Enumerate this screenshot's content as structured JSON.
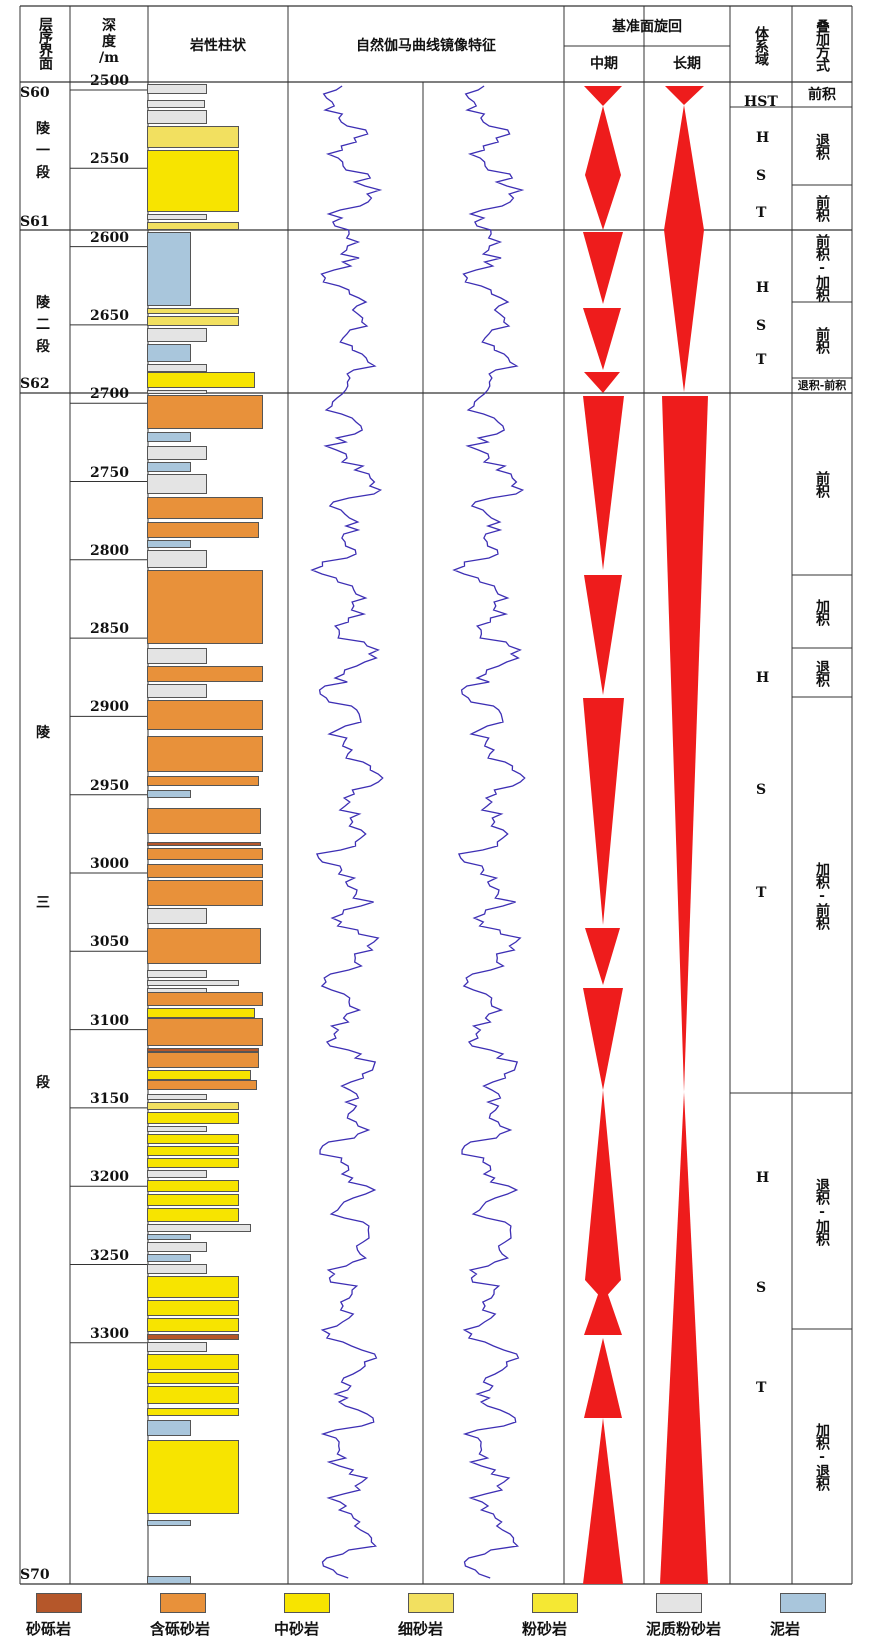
{
  "header": {
    "col_sequence": "层序界面",
    "col_depth": [
      "深",
      "度",
      "/m"
    ],
    "col_lithology": "岩性柱状",
    "col_gamma": "自然伽马曲线镜像特征",
    "col_cycle": "基准面旋回",
    "col_cycle_mid": "中期",
    "col_cycle_long": "长期",
    "col_system_tract": "体系域",
    "col_stacking": "叠加方式"
  },
  "boundaries": [
    "S60",
    "S61",
    "S62",
    "S70"
  ],
  "members": [
    {
      "chars": [
        "陵",
        "一",
        "段"
      ]
    },
    {
      "chars": [
        "陵",
        "二",
        "段"
      ]
    },
    {
      "chars": [
        "陵",
        "三",
        "段"
      ]
    }
  ],
  "depth_ticks": [
    "2500",
    "2550",
    "2600",
    "2650",
    "2700",
    "2750",
    "2800",
    "2850",
    "2900",
    "2950",
    "3000",
    "3050",
    "3100",
    "3150",
    "3200",
    "3250",
    "3300"
  ],
  "system_tracts": [
    {
      "chars": [
        "HST"
      ]
    },
    {
      "chars": [
        "H",
        "S",
        "T"
      ]
    },
    {
      "chars": [
        "H",
        "S",
        "T"
      ]
    },
    {
      "chars": [
        "H",
        "S",
        "T"
      ]
    },
    {
      "chars": [
        "H",
        "S",
        "T"
      ]
    }
  ],
  "stacking": [
    {
      "text": "前积"
    },
    {
      "text": "退积"
    },
    {
      "text": "前积"
    },
    {
      "text": "前积-加积"
    },
    {
      "text": "前积"
    },
    {
      "text": "退积-前积"
    },
    {
      "text": "前积"
    },
    {
      "text": "加积"
    },
    {
      "text": "退积"
    },
    {
      "text": "加积-前积"
    },
    {
      "text": "退积-加积"
    },
    {
      "text": "加积-退积"
    }
  ],
  "legend": [
    {
      "label": "砂砾岩",
      "color": "#b5572a"
    },
    {
      "label": "含砾砂岩",
      "color": "#e8913a"
    },
    {
      "label": "中砂岩",
      "color": "#f7e400"
    },
    {
      "label": "细砂岩",
      "color": "#f2e060"
    },
    {
      "label": "粉砂岩",
      "color": "#f5e833"
    },
    {
      "label": "泥质粉砂岩",
      "color": "#e4e4e4"
    },
    {
      "label": "泥岩",
      "color": "#a9c6dc"
    }
  ],
  "colors": {
    "cycle": "#ee1c1c",
    "gamma": "#3d2fb4",
    "grid": "#333333"
  }
}
